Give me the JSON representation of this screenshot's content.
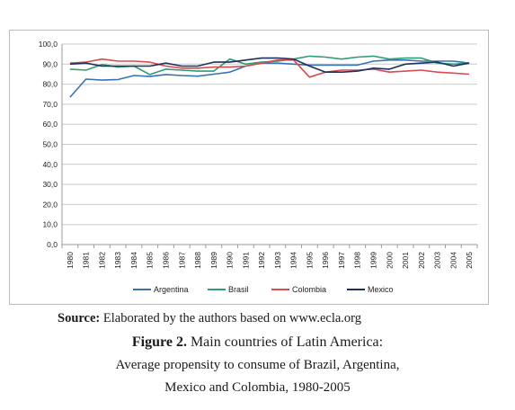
{
  "chart_data": {
    "type": "line",
    "x": [
      "1980",
      "1981",
      "1982",
      "1983",
      "1984",
      "1985",
      "1986",
      "1987",
      "1988",
      "1989",
      "1990",
      "1991",
      "1992",
      "1993",
      "1994",
      "1995",
      "1996",
      "1997",
      "1998",
      "1999",
      "2000",
      "2001",
      "2002",
      "2003",
      "2004",
      "2005"
    ],
    "y_ticks": [
      "0,0",
      "10,0",
      "20,0",
      "30,0",
      "40,0",
      "50,0",
      "60,0",
      "70,0",
      "80,0",
      "90,0",
      "100,0"
    ],
    "ylim": [
      0,
      100
    ],
    "grid": "horizontal",
    "legend_position": "bottom",
    "series": [
      {
        "name": "Argentina",
        "color": "#3a72b0",
        "values": [
          73.5,
          82.5,
          82.0,
          82.3,
          84.3,
          83.8,
          84.8,
          84.3,
          84.0,
          85.0,
          86.0,
          89.0,
          90.5,
          90.5,
          90.0,
          89.5,
          89.5,
          89.5,
          89.5,
          91.5,
          92.0,
          92.0,
          91.5,
          91.5,
          91.5,
          90.5
        ]
      },
      {
        "name": "Brasil",
        "color": "#2e9c74",
        "values": [
          87.5,
          87.0,
          89.8,
          88.5,
          89.0,
          84.8,
          87.5,
          87.0,
          86.5,
          86.5,
          92.5,
          90.0,
          91.0,
          91.5,
          92.5,
          94.0,
          93.5,
          92.5,
          93.5,
          94.0,
          92.5,
          93.0,
          93.0,
          90.5,
          90.0,
          90.5
        ]
      },
      {
        "name": "Colombia",
        "color": "#d84b4e",
        "values": [
          90.5,
          91.0,
          92.5,
          91.5,
          91.5,
          91.0,
          89.0,
          88.0,
          88.0,
          88.5,
          88.5,
          89.0,
          90.5,
          92.0,
          92.0,
          83.5,
          86.0,
          87.0,
          87.0,
          87.5,
          86.0,
          86.5,
          87.0,
          86.0,
          85.5,
          85.0
        ]
      },
      {
        "name": "Mexico",
        "color": "#1c2f5e",
        "values": [
          90.0,
          90.5,
          89.0,
          89.0,
          89.0,
          89.0,
          90.5,
          89.0,
          89.0,
          91.0,
          91.0,
          92.0,
          93.0,
          93.0,
          92.5,
          89.0,
          86.0,
          86.0,
          86.5,
          88.0,
          87.5,
          90.0,
          90.5,
          91.0,
          89.0,
          90.5
        ]
      }
    ]
  },
  "caption": {
    "source_label": "Source:",
    "source_text": "Elaborated by the authors based on www.ecla.org",
    "figure_label": "Figure 2.",
    "figure_title": "Main countries of Latin America:",
    "line1": "Average propensity to consume of Brazil, Argentina,",
    "line2": "Mexico and Colombia, 1980-2005"
  }
}
